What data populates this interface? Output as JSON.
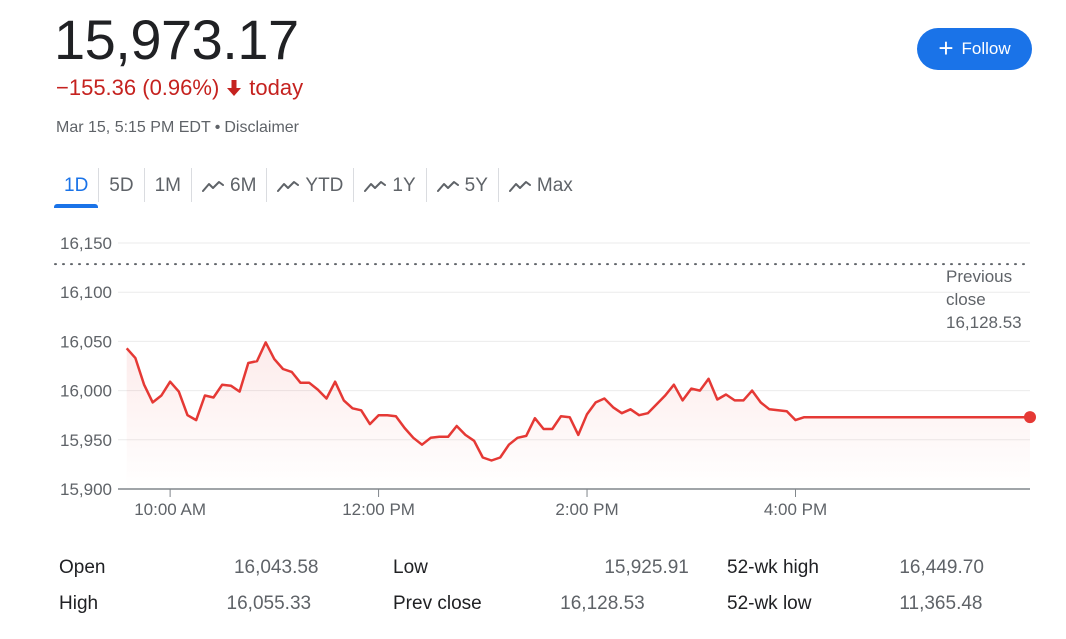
{
  "quote": {
    "price": "15,973.17",
    "change": "−155.36 (0.96%)",
    "change_suffix": "today",
    "timestamp": "Mar 15, 5:15 PM EDT",
    "disclaimer": "Disclaimer"
  },
  "follow_button": {
    "label": "Follow"
  },
  "tabs": [
    {
      "label": "1D",
      "active": true,
      "trend_icon": false
    },
    {
      "label": "5D",
      "active": false,
      "trend_icon": false
    },
    {
      "label": "1M",
      "active": false,
      "trend_icon": false
    },
    {
      "label": "6M",
      "active": false,
      "trend_icon": true
    },
    {
      "label": "YTD",
      "active": false,
      "trend_icon": true
    },
    {
      "label": "1Y",
      "active": false,
      "trend_icon": true
    },
    {
      "label": "5Y",
      "active": false,
      "trend_icon": true
    },
    {
      "label": "Max",
      "active": false,
      "trend_icon": true
    }
  ],
  "colors": {
    "line": "#e53935",
    "accent": "#1a73e8",
    "negative": "#c5221f"
  },
  "chart_data": {
    "type": "line",
    "ylim": [
      15900,
      16150
    ],
    "y_ticks": [
      {
        "value": 16150,
        "label": "16,150"
      },
      {
        "value": 16100,
        "label": "16,100"
      },
      {
        "value": 16050,
        "label": "16,050"
      },
      {
        "value": 16000,
        "label": "16,000"
      },
      {
        "value": 15950,
        "label": "15,950"
      },
      {
        "value": 15900,
        "label": "15,900"
      }
    ],
    "x_range_minutes": [
      570,
      1095
    ],
    "x_ticks": [
      {
        "minute": 600,
        "label": "10:00 AM"
      },
      {
        "minute": 720,
        "label": "12:00 PM"
      },
      {
        "minute": 840,
        "label": "2:00 PM"
      },
      {
        "minute": 960,
        "label": "4:00 PM"
      }
    ],
    "previous_close": {
      "value": 16128.53,
      "label_line1": "Previous",
      "label_line2": "close",
      "value_label": "16,128.53"
    },
    "series": [
      {
        "x_minutes": [
          575,
          580,
          585,
          590,
          595,
          600,
          605,
          610,
          615,
          620,
          625,
          630,
          635,
          640,
          645,
          650,
          655,
          660,
          665,
          670,
          675,
          680,
          685,
          690,
          695,
          700,
          705,
          710,
          715,
          720,
          725,
          730,
          735,
          740,
          745,
          750,
          755,
          760,
          765,
          770,
          775,
          780,
          785,
          790,
          795,
          800,
          805,
          810,
          815,
          820,
          825,
          830,
          835,
          840,
          845,
          850,
          855,
          860,
          865,
          870,
          875,
          880,
          885,
          890,
          895,
          900,
          905,
          910,
          915,
          920,
          925,
          930,
          935,
          940,
          945,
          950,
          955,
          960,
          965,
          970,
          1095
        ],
        "values": [
          16043,
          16033,
          16006,
          15988,
          15995,
          16009,
          15999,
          15975,
          15970,
          15995,
          15993,
          16006,
          16005,
          15999,
          16028,
          16030,
          16049,
          16032,
          16022,
          16019,
          16008,
          16008,
          16001,
          15992,
          16009,
          15990,
          15982,
          15980,
          15966,
          15975,
          15975,
          15974,
          15962,
          15952,
          15945,
          15952,
          15953,
          15953,
          15964,
          15955,
          15949,
          15932,
          15929,
          15932,
          15945,
          15952,
          15954,
          15972,
          15961,
          15961,
          15974,
          15973,
          15955,
          15976,
          15988,
          15992,
          15983,
          15977,
          15981,
          15975,
          15977,
          15986,
          15995,
          16006,
          15990,
          16002,
          16000,
          16012,
          15991,
          15996,
          15990,
          15990,
          16000,
          15988,
          15981,
          15980,
          15979,
          15970,
          15973,
          15973,
          15973
        ]
      }
    ]
  },
  "stats": {
    "open": {
      "label": "Open",
      "value": "16,043.58"
    },
    "high": {
      "label": "High",
      "value": "16,055.33"
    },
    "low": {
      "label": "Low",
      "value": "15,925.91"
    },
    "prev_close": {
      "label": "Prev close",
      "value": "16,128.53"
    },
    "wk52_high": {
      "label": "52-wk high",
      "value": "16,449.70"
    },
    "wk52_low": {
      "label": "52-wk low",
      "value": "11,365.48"
    }
  }
}
